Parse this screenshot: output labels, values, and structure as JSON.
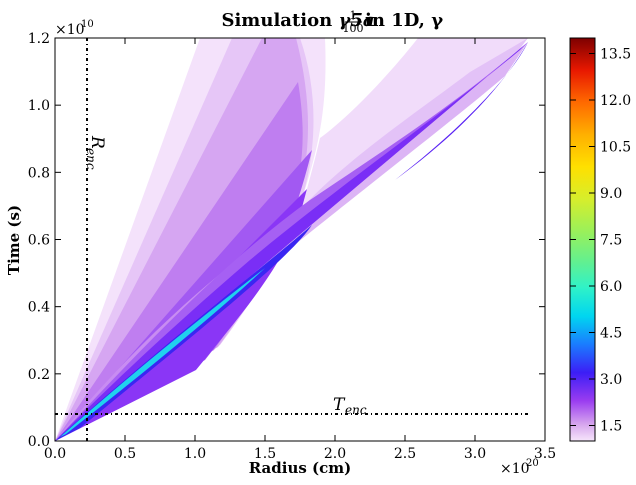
{
  "chart_data": {
    "type": "heatmap",
    "title_prefix": "Simulation ",
    "title_math": "γ5a",
    "title_frac_num": "1",
    "title_frac_den": "100",
    "title_suffix": " in 1D, γ",
    "xlabel": "Radius (cm)",
    "ylabel": "Time (s)",
    "x_multiplier": "×10",
    "x_multiplier_exp": "20",
    "y_multiplier": "×10",
    "y_multiplier_exp": "10",
    "xlim": [
      0.0,
      3.5
    ],
    "ylim": [
      0.0,
      1.2
    ],
    "x_ticks": [
      "0.0",
      "0.5",
      "1.0",
      "1.5",
      "2.0",
      "2.5",
      "3.0",
      "3.5"
    ],
    "y_ticks": [
      "0.0",
      "0.2",
      "0.4",
      "0.6",
      "0.8",
      "1.0",
      "1.2"
    ],
    "colorbar": {
      "min": 1.0,
      "max": 14.0,
      "ticks": [
        "1.5",
        "3.0",
        "4.5",
        "6.0",
        "7.5",
        "9.0",
        "10.5",
        "12.0",
        "13.5"
      ],
      "colormap": "rainbow-reversed-lavender"
    },
    "annotations": [
      {
        "label": "R",
        "sub": "enc",
        "orientation": "vertical",
        "x": 0.23
      },
      {
        "label": "T",
        "sub": "enc",
        "orientation": "horizontal",
        "y": 0.08
      }
    ],
    "contour_regions": [
      {
        "name": "outer-ejecta-lobe",
        "level": 1.2
      },
      {
        "name": "inner-ejecta-lobe",
        "level": 1.5
      },
      {
        "name": "core-lobe",
        "level": 2.0
      },
      {
        "name": "reverse-shock-band",
        "level": 1.3
      },
      {
        "name": "shock-front",
        "level": 3.5
      }
    ]
  }
}
